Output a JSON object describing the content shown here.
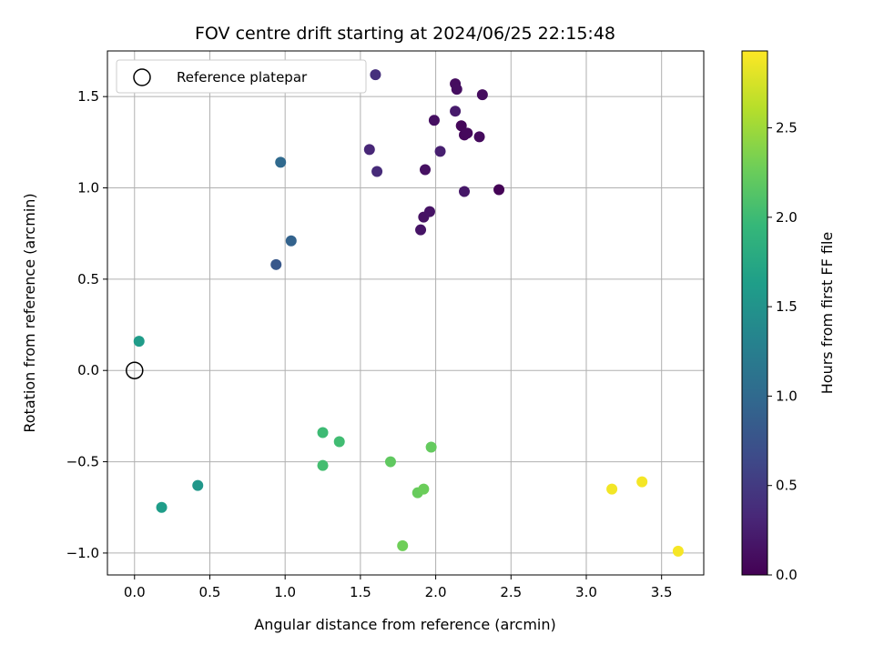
{
  "chart_data": {
    "type": "scatter",
    "title": "FOV centre drift starting at 2024/06/25 22:15:48",
    "xlabel": "Angular distance from reference (arcmin)",
    "ylabel": "Rotation from reference (arcmin)",
    "xlim": [
      -0.18,
      3.78
    ],
    "ylim": [
      -1.12,
      1.75
    ],
    "xticks": [
      0.0,
      0.5,
      1.0,
      1.5,
      2.0,
      2.5,
      3.0,
      3.5
    ],
    "xtick_labels": [
      "0.0",
      "0.5",
      "1.0",
      "1.5",
      "2.0",
      "2.5",
      "3.0",
      "3.5"
    ],
    "yticks": [
      -1.0,
      -0.5,
      0.0,
      0.5,
      1.0,
      1.5
    ],
    "ytick_labels": [
      "−1.0",
      "−0.5",
      "0.0",
      "0.5",
      "1.0",
      "1.5"
    ],
    "grid": true,
    "colormap": "viridis",
    "legend": {
      "position": "top-left",
      "entries": [
        {
          "label": "Reference platepar",
          "marker": "open-circle"
        }
      ]
    },
    "reference_point": {
      "x": 0.0,
      "y": 0.0
    },
    "colorbar": {
      "label": "Hours from first FF file",
      "range": [
        0.0,
        2.93
      ],
      "ticks": [
        0.0,
        0.5,
        1.0,
        1.5,
        2.0,
        2.5
      ],
      "tick_labels": [
        "0.0",
        "0.5",
        "1.0",
        "1.5",
        "2.0",
        "2.5"
      ]
    },
    "points": [
      {
        "x": 2.42,
        "y": 0.99,
        "t": 0.02
      },
      {
        "x": 2.17,
        "y": 1.34,
        "t": 0.05
      },
      {
        "x": 2.19,
        "y": 1.29,
        "t": 0.06
      },
      {
        "x": 2.21,
        "y": 1.3,
        "t": 0.07
      },
      {
        "x": 2.29,
        "y": 1.28,
        "t": 0.08
      },
      {
        "x": 2.31,
        "y": 1.51,
        "t": 0.09
      },
      {
        "x": 2.13,
        "y": 1.57,
        "t": 0.1
      },
      {
        "x": 2.14,
        "y": 1.54,
        "t": 0.11
      },
      {
        "x": 1.99,
        "y": 1.37,
        "t": 0.12
      },
      {
        "x": 1.93,
        "y": 1.1,
        "t": 0.13
      },
      {
        "x": 1.92,
        "y": 0.84,
        "t": 0.14
      },
      {
        "x": 1.96,
        "y": 0.87,
        "t": 0.15
      },
      {
        "x": 1.9,
        "y": 0.77,
        "t": 0.16
      },
      {
        "x": 2.19,
        "y": 0.98,
        "t": 0.18
      },
      {
        "x": 2.13,
        "y": 1.42,
        "t": 0.22
      },
      {
        "x": 2.03,
        "y": 1.2,
        "t": 0.25
      },
      {
        "x": 1.56,
        "y": 1.21,
        "t": 0.32
      },
      {
        "x": 1.61,
        "y": 1.09,
        "t": 0.35
      },
      {
        "x": 1.6,
        "y": 1.62,
        "t": 0.4
      },
      {
        "x": 0.94,
        "y": 0.58,
        "t": 0.8
      },
      {
        "x": 1.04,
        "y": 0.71,
        "t": 0.92
      },
      {
        "x": 0.97,
        "y": 1.14,
        "t": 1.0
      },
      {
        "x": 0.42,
        "y": -0.63,
        "t": 1.55
      },
      {
        "x": 0.03,
        "y": 0.16,
        "t": 1.6
      },
      {
        "x": 0.18,
        "y": -0.75,
        "t": 1.62
      },
      {
        "x": 1.25,
        "y": -0.34,
        "t": 2.0
      },
      {
        "x": 1.36,
        "y": -0.39,
        "t": 2.02
      },
      {
        "x": 1.25,
        "y": -0.52,
        "t": 2.04
      },
      {
        "x": 1.7,
        "y": -0.5,
        "t": 2.2
      },
      {
        "x": 1.97,
        "y": -0.42,
        "t": 2.22
      },
      {
        "x": 1.88,
        "y": -0.67,
        "t": 2.24
      },
      {
        "x": 1.92,
        "y": -0.65,
        "t": 2.26
      },
      {
        "x": 1.78,
        "y": -0.96,
        "t": 2.28
      },
      {
        "x": 3.17,
        "y": -0.65,
        "t": 2.88
      },
      {
        "x": 3.37,
        "y": -0.61,
        "t": 2.89
      },
      {
        "x": 3.61,
        "y": -0.99,
        "t": 2.9
      }
    ]
  }
}
